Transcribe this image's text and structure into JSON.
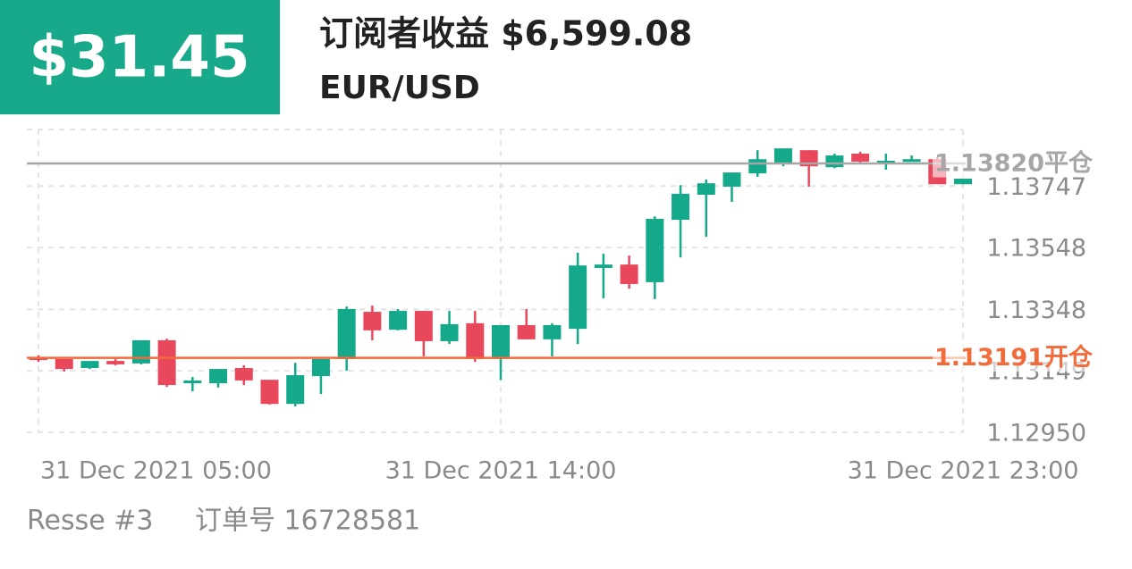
{
  "header": {
    "pnl": "$31.45",
    "title": "订阅者收益 $6,599.08",
    "symbol": "EUR/USD"
  },
  "footer": {
    "account": "Resse #3",
    "order": "订单号 16728581"
  },
  "chart_data": {
    "type": "candlestick",
    "categories": [
      "31 Dec 2021 05:00",
      null,
      null,
      null,
      null,
      null,
      null,
      null,
      null,
      null,
      null,
      null,
      null,
      null,
      null,
      null,
      null,
      null,
      "31 Dec 2021 14:00",
      null,
      null,
      null,
      null,
      null,
      null,
      null,
      null,
      null,
      null,
      null,
      null,
      null,
      null,
      null,
      null,
      null,
      "31 Dec 2021 23:00"
    ],
    "open": [
      1.13193,
      1.13187,
      1.13158,
      1.13181,
      1.13173,
      1.13248,
      1.13109,
      1.13109,
      1.13158,
      1.1312,
      1.13042,
      1.13132,
      1.13187,
      1.1334,
      1.13282,
      1.13343,
      1.13245,
      1.13303,
      1.13187,
      1.13297,
      1.13251,
      1.13285,
      1.13482,
      1.13493,
      1.13436,
      1.13638,
      1.13719,
      1.13745,
      1.13788,
      1.13823,
      1.13863,
      1.13808,
      1.13852,
      1.13823,
      1.13829,
      1.13834,
      1.13753
    ],
    "high": [
      1.13199,
      1.13187,
      1.13181,
      1.13187,
      1.13248,
      1.13253,
      1.13129,
      1.13155,
      1.13167,
      1.1312,
      1.13175,
      1.13187,
      1.13357,
      1.1336,
      1.13349,
      1.13343,
      1.13343,
      1.13343,
      1.13297,
      1.13349,
      1.13303,
      1.13531,
      1.13528,
      1.13522,
      1.13649,
      1.1375,
      1.13768,
      1.13791,
      1.13863,
      1.13869,
      1.13863,
      1.13852,
      1.13858,
      1.13852,
      1.13846,
      1.1384,
      1.13771
    ],
    "low": [
      1.13178,
      1.13147,
      1.13155,
      1.13167,
      1.1317,
      1.13097,
      1.13083,
      1.13095,
      1.13103,
      1.1304,
      1.13034,
      1.13074,
      1.13149,
      1.13248,
      1.1328,
      1.13196,
      1.13236,
      1.13178,
      1.1312,
      1.13251,
      1.13196,
      1.13236,
      1.13384,
      1.13415,
      1.13381,
      1.13516,
      1.13583,
      1.13696,
      1.13777,
      1.13811,
      1.13745,
      1.13805,
      1.13817,
      1.138,
      1.13826,
      1.13753,
      1.13753
    ],
    "close": [
      1.13184,
      1.13155,
      1.13181,
      1.1317,
      1.13248,
      1.13103,
      1.13118,
      1.13155,
      1.13118,
      1.13042,
      1.13135,
      1.13187,
      1.13349,
      1.1328,
      1.13343,
      1.13245,
      1.133,
      1.13187,
      1.13297,
      1.13251,
      1.13297,
      1.1349,
      1.13493,
      1.1343,
      1.13641,
      1.13722,
      1.13756,
      1.13791,
      1.13834,
      1.13869,
      1.13811,
      1.13846,
      1.13826,
      1.13829,
      1.13834,
      1.13753,
      1.13771
    ],
    "up_color": "#14a98a",
    "down_color": "#e9485c",
    "ylim": [
      1.1295,
      1.1393
    ],
    "yticks": [
      {
        "value": 1.1295,
        "label": "1.12950"
      },
      1.13149,
      1.13348,
      1.13548,
      1.13747
    ],
    "grid": true,
    "reference_lines": [
      {
        "value": 1.1382,
        "label": "1.13820平仓",
        "color": "#a6a6a6"
      },
      {
        "value": 1.13191,
        "label": "1.13191开仓",
        "color": "#f26b3a"
      }
    ]
  }
}
